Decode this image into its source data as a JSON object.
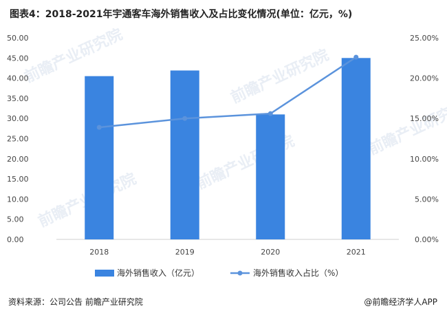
{
  "title": "图表4：2018-2021年宇通客车海外销售收入及占比变化情况(单位：亿元，%)",
  "footer": {
    "source": "资料来源：公司公告 前瞻产业研究院",
    "brand": "@前瞻经济学人APP"
  },
  "watermark": "前瞻产业研究院",
  "colors": {
    "bar": "#3a84e0",
    "line": "#5b93dc"
  },
  "chart_data": {
    "type": "bar",
    "categories": [
      "2018",
      "2019",
      "2020",
      "2021"
    ],
    "series": [
      {
        "name": "海外销售收入（亿元）",
        "type": "bar",
        "axis": "left",
        "values": [
          40.5,
          41.9,
          31.0,
          45.0
        ]
      },
      {
        "name": "海外销售收入占比（%）",
        "type": "line",
        "axis": "right",
        "values": [
          13.9,
          15.0,
          15.6,
          22.6
        ]
      }
    ],
    "y_left": {
      "min": 0,
      "max": 50,
      "ticks": [
        "0.00",
        "5.00",
        "10.00",
        "15.00",
        "20.00",
        "25.00",
        "30.00",
        "35.00",
        "40.00",
        "45.00",
        "50.00"
      ]
    },
    "y_right": {
      "min": 0,
      "max": 25,
      "ticks": [
        "0.00%",
        "5.00%",
        "10.00%",
        "15.00%",
        "20.00%",
        "25.00%"
      ]
    },
    "legend": "bottom",
    "grid": false
  }
}
